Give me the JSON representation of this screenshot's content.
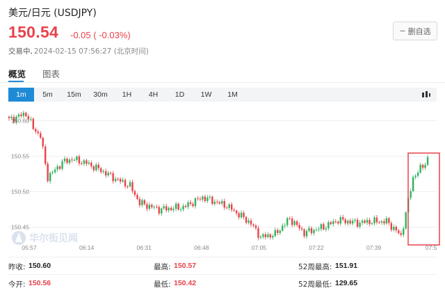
{
  "header": {
    "title": "美元/日元 (USDJPY)",
    "price": "150.54",
    "change": "-0.05",
    "change_pct": "( -0.03%)",
    "status": "交易中,",
    "timestamp": "2024-02-15 07:56:27 (北京时间)",
    "watch_button": "删自选",
    "watch_button_glyph": "−"
  },
  "tabs": [
    {
      "label": "概览",
      "active": true
    },
    {
      "label": "图表",
      "active": false
    }
  ],
  "periods": [
    "1m",
    "5m",
    "15m",
    "30m",
    "1H",
    "4H",
    "1D",
    "1W",
    "1M"
  ],
  "active_period": "1m",
  "watermark": "华尔街见闻",
  "colors": {
    "up": "#2fb35c",
    "down": "#e8424a",
    "accent": "#1f8bd6",
    "highlight_box": "#e8424a"
  },
  "stats": {
    "prev_close_label": "昨收:",
    "prev_close": "150.60",
    "high_label": "最高:",
    "high": "150.57",
    "high52_label": "52周最高:",
    "high52": "151.91",
    "open_label": "今开:",
    "open": "150.56",
    "low_label": "最低:",
    "low": "150.42",
    "low52_label": "52周最低:",
    "low52": "129.65"
  },
  "chart_data": {
    "type": "candlestick",
    "interval": "1m",
    "y_ticks": [
      "150.60",
      "150.55",
      "150.50",
      "150.45"
    ],
    "y_tick_values": [
      150.6,
      150.55,
      150.5,
      150.45
    ],
    "ylim": [
      150.425,
      150.615
    ],
    "x_ticks": [
      "05:57",
      "06:14",
      "06:31",
      "06:48",
      "07:05",
      "07:22",
      "07:39",
      "07:5"
    ],
    "grid": true,
    "annotation": "highlight box around latest candles",
    "waypoints": [
      [
        0,
        150.601
      ],
      [
        7,
        150.61
      ],
      [
        10,
        150.59
      ],
      [
        13,
        150.578
      ],
      [
        16,
        150.52
      ],
      [
        22,
        150.541
      ],
      [
        26,
        150.546
      ],
      [
        32,
        150.54
      ],
      [
        38,
        150.53
      ],
      [
        44,
        150.518
      ],
      [
        50,
        150.508
      ],
      [
        54,
        150.484
      ],
      [
        62,
        150.475
      ],
      [
        72,
        150.478
      ],
      [
        80,
        150.492
      ],
      [
        90,
        150.48
      ],
      [
        99,
        150.458
      ],
      [
        100,
        150.455
      ],
      [
        104,
        150.436
      ],
      [
        110,
        150.44
      ],
      [
        116,
        150.462
      ],
      [
        122,
        150.442
      ],
      [
        130,
        150.45
      ],
      [
        136,
        150.46
      ],
      [
        144,
        150.456
      ],
      [
        150,
        150.458
      ],
      [
        156,
        150.458
      ],
      [
        160,
        150.445
      ],
      [
        162,
        150.437
      ],
      [
        164,
        150.47
      ],
      [
        167,
        150.52
      ],
      [
        171,
        150.536
      ],
      [
        173,
        150.546
      ]
    ]
  }
}
